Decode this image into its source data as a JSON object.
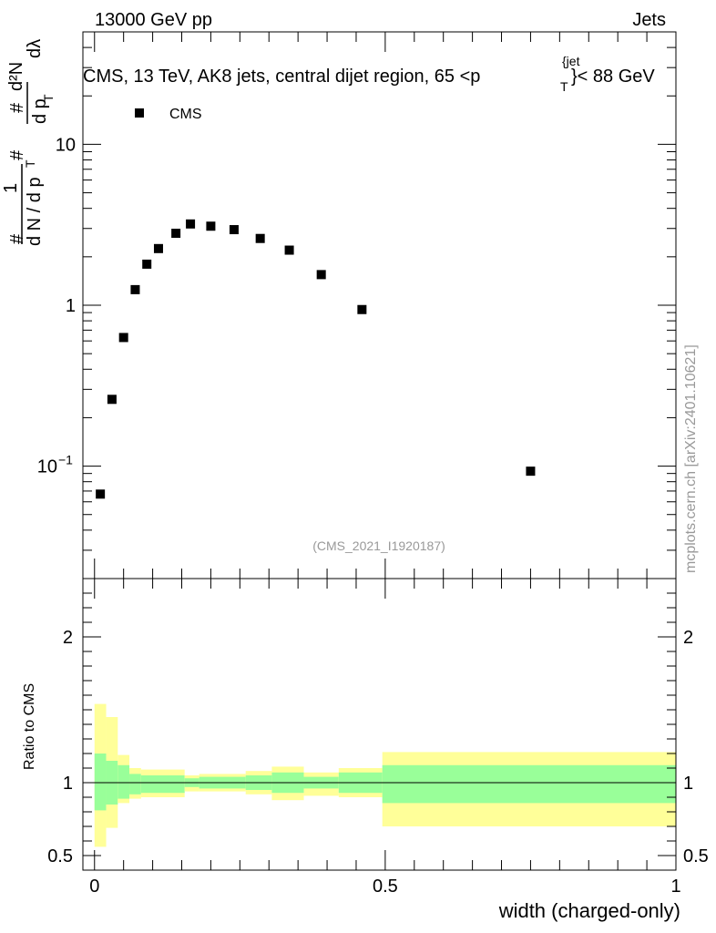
{
  "header": {
    "energy_label": "13000 GeV pp",
    "category_label": "Jets",
    "watermark": "mcplots.cern.ch [arXiv:2401.10621]"
  },
  "chart_data": [
    {
      "type": "scatter",
      "title": "CMS, 13 TeV, AK8 jets, central dijet region, 65 <p_T^{jet}< 88 GeV",
      "title_parts": {
        "main": "CMS, 13 TeV, AK8 jets, central dijet region, 65 <p",
        "sup": "{jet",
        "sub": "T",
        "tail": "}< 88 GeV"
      },
      "ylabel_parts": {
        "frac_num": "1",
        "frac_den": "d N / d p",
        "frac_den_sub": "T",
        "deriv_num": "d²N",
        "deriv_den": "d p",
        "deriv_den_sub": "T",
        "deriv_den_tail": " dλ",
        "hash": "#"
      },
      "yscale": "log",
      "ylim": [
        0.02,
        50
      ],
      "xlim": [
        -0.02,
        1.0
      ],
      "yticks": [
        {
          "value": 10,
          "label": "10"
        },
        {
          "value": 1,
          "label": "1"
        },
        {
          "value": 0.1,
          "label": "10",
          "exponent": "−1"
        }
      ],
      "legend": {
        "entry": "CMS",
        "location": "top-left"
      },
      "analysis_id": "(CMS_2021_I1920187)",
      "series": [
        {
          "name": "CMS",
          "marker": "square",
          "x": [
            0.01,
            0.03,
            0.05,
            0.07,
            0.09,
            0.11,
            0.14,
            0.165,
            0.2,
            0.24,
            0.285,
            0.335,
            0.39,
            0.46,
            0.75
          ],
          "y": [
            0.067,
            0.26,
            0.63,
            1.25,
            1.8,
            2.25,
            2.8,
            3.2,
            3.1,
            2.95,
            2.6,
            2.2,
            1.55,
            0.94,
            0.093
          ]
        }
      ]
    },
    {
      "type": "area",
      "ylabel": "Ratio to CMS",
      "xlabel": "width (charged-only)",
      "ylim": [
        0.4,
        2.4
      ],
      "xlim": [
        -0.02,
        1.0
      ],
      "yticks": [
        {
          "value": 0.5,
          "label": "0.5"
        },
        {
          "value": 1,
          "label": "1"
        },
        {
          "value": 2,
          "label": "2"
        }
      ],
      "xticks": [
        {
          "value": 0,
          "label": "0"
        },
        {
          "value": 0.5,
          "label": "0.5"
        },
        {
          "value": 1,
          "label": "1"
        }
      ],
      "reference_line": 1.0,
      "band_colors": {
        "outer": "#ffff99",
        "inner": "#99ff99"
      },
      "bins": [
        {
          "x0": 0.0,
          "x1": 0.02,
          "outer_lo": 0.56,
          "outer_hi": 1.54,
          "inner_lo": 0.81,
          "inner_hi": 1.2
        },
        {
          "x0": 0.02,
          "x1": 0.04,
          "outer_lo": 0.69,
          "outer_hi": 1.45,
          "inner_lo": 0.85,
          "inner_hi": 1.15
        },
        {
          "x0": 0.04,
          "x1": 0.06,
          "outer_lo": 0.86,
          "outer_hi": 1.19,
          "inner_lo": 0.89,
          "inner_hi": 1.12
        },
        {
          "x0": 0.06,
          "x1": 0.08,
          "outer_lo": 0.89,
          "outer_hi": 1.1,
          "inner_lo": 0.92,
          "inner_hi": 1.06
        },
        {
          "x0": 0.08,
          "x1": 0.155,
          "outer_lo": 0.9,
          "outer_hi": 1.09,
          "inner_lo": 0.93,
          "inner_hi": 1.05
        },
        {
          "x0": 0.155,
          "x1": 0.18,
          "outer_lo": 0.94,
          "outer_hi": 1.05,
          "inner_lo": 0.97,
          "inner_hi": 1.03
        },
        {
          "x0": 0.18,
          "x1": 0.26,
          "outer_lo": 0.94,
          "outer_hi": 1.06,
          "inner_lo": 0.96,
          "inner_hi": 1.04
        },
        {
          "x0": 0.26,
          "x1": 0.305,
          "outer_lo": 0.92,
          "outer_hi": 1.08,
          "inner_lo": 0.95,
          "inner_hi": 1.05
        },
        {
          "x0": 0.305,
          "x1": 0.36,
          "outer_lo": 0.88,
          "outer_hi": 1.11,
          "inner_lo": 0.93,
          "inner_hi": 1.07
        },
        {
          "x0": 0.36,
          "x1": 0.42,
          "outer_lo": 0.91,
          "outer_hi": 1.07,
          "inner_lo": 0.96,
          "inner_hi": 1.04
        },
        {
          "x0": 0.42,
          "x1": 0.495,
          "outer_lo": 0.9,
          "outer_hi": 1.1,
          "inner_lo": 0.93,
          "inner_hi": 1.07
        },
        {
          "x0": 0.495,
          "x1": 1.0,
          "outer_lo": 0.7,
          "outer_hi": 1.21,
          "inner_lo": 0.86,
          "inner_hi": 1.12
        }
      ]
    }
  ]
}
